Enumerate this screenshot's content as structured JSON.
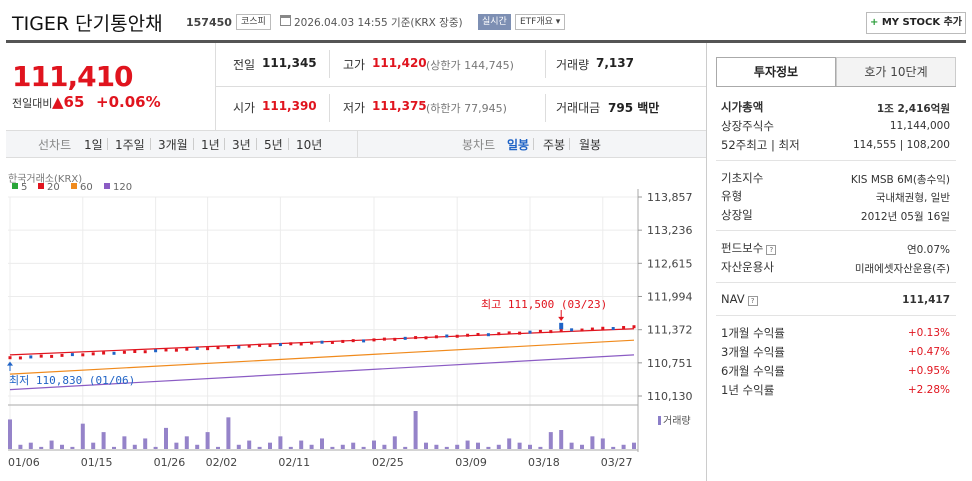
{
  "header": {
    "name": "TIGER 단기통안채",
    "code": "157450",
    "market_tag": "코스피",
    "datetime": "2026.04.03 14:55 기준(KRX 장중)",
    "live_tag": "실시간",
    "etf_tag": "ETF개요 ▾",
    "mystock_label": "MY STOCK 추가"
  },
  "quote": {
    "price": "111,410",
    "change_label": "전일대비",
    "change_arrow": "▲",
    "change_value": "65",
    "change_pct": "+0.06%",
    "prev_label": "전일",
    "prev_value": "111,345",
    "high_label": "고가",
    "high_value": "111,420",
    "upper_limit": "(상한가 144,745)",
    "volume_label": "거래량",
    "volume_value": "7,137",
    "open_label": "시가",
    "open_value": "111,390",
    "low_label": "저가",
    "low_value": "111,375",
    "lower_limit": "(하한가 77,945)",
    "amount_label": "거래대금",
    "amount_value": "795 백만"
  },
  "periods": {
    "chart_label": "선차트",
    "items": [
      "1일",
      "1주일",
      "3개월",
      "1년",
      "3년",
      "5년",
      "10년"
    ],
    "candle_label": "봉차트",
    "candles": [
      "일봉",
      "주봉",
      "월봉"
    ],
    "active_candle": "일봉"
  },
  "chart": {
    "exchange": "한국거래소(KRX)",
    "legend": [
      {
        "name": "5",
        "color": "#2aa63a"
      },
      {
        "name": "20",
        "color": "#e0141e"
      },
      {
        "name": "60",
        "color": "#f08a1c"
      },
      {
        "name": "120",
        "color": "#8b5cc4"
      }
    ],
    "volume_label": "거래량",
    "high_note": "최고 111,500 (03/23)",
    "low_note": "최저 110,830 (01/06)"
  },
  "chart_data": {
    "type": "line",
    "yticks": [
      113857,
      113236,
      112615,
      111994,
      111372,
      110751,
      110130
    ],
    "ylim": [
      110130,
      113857
    ],
    "xticks": [
      "01/06",
      "01/15",
      "01/26",
      "02/02",
      "02/11",
      "02/25",
      "03/09",
      "03/18",
      "03/27"
    ],
    "n_days": 61,
    "price_start": 110830,
    "price_end": 111410,
    "ma20": [
      110900,
      111390
    ],
    "ma60": [
      110540,
      111175
    ],
    "ma120": [
      110250,
      110900
    ],
    "volume": [
      14,
      2,
      3,
      1,
      4,
      2,
      1,
      12,
      3,
      8,
      1,
      6,
      2,
      5,
      1,
      10,
      3,
      6,
      2,
      8,
      1,
      15,
      2,
      4,
      1,
      3,
      6,
      1,
      4,
      2,
      5,
      1,
      2,
      3,
      1,
      4,
      2,
      6,
      1,
      18,
      3,
      2,
      1,
      2,
      4,
      3,
      1,
      2,
      5,
      3,
      2,
      1,
      8,
      9,
      3,
      2,
      6,
      5,
      1,
      2,
      3
    ]
  },
  "info": {
    "tab_active": "투자정보",
    "tab_other": "호가 10단계",
    "mcap_label": "시가총액",
    "mcap_value": "1조 2,416억원",
    "shares_label": "상장주식수",
    "shares_value": "11,144,000",
    "w52_label": "52주최고 | 최저",
    "w52_value": "114,555 | 108,200",
    "index_label": "기초지수",
    "index_value": "KIS MSB 6M(총수익)",
    "type_label": "유형",
    "type_value": "국내채권형, 일반",
    "listed_label": "상장일",
    "listed_value": "2012년 05월 16일",
    "fee_label": "펀드보수",
    "fee_value": "연0.07%",
    "manager_label": "자산운용사",
    "manager_value": "미래에셋자산운용(주)",
    "nav_label": "NAV",
    "nav_value": "111,417",
    "r1_label": "1개월 수익률",
    "r1_value": "+0.13%",
    "r3_label": "3개월 수익률",
    "r3_value": "+0.47%",
    "r6_label": "6개월 수익률",
    "r6_value": "+0.95%",
    "r12_label": "1년 수익률",
    "r12_value": "+2.28%"
  }
}
